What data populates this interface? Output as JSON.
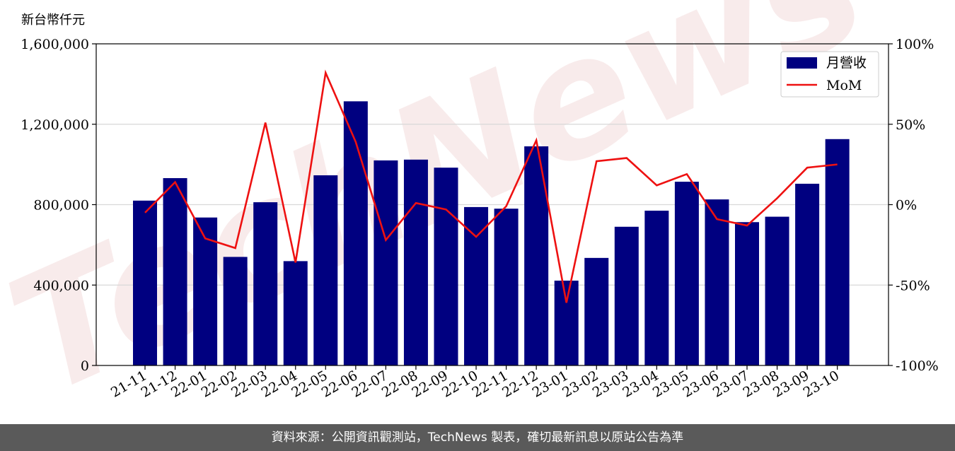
{
  "chart_data": {
    "type": "bar",
    "unit_label": "新台幣仟元",
    "categories": [
      "21-11",
      "21-12",
      "22-01",
      "22-02",
      "22-03",
      "22-04",
      "22-05",
      "22-06",
      "22-07",
      "22-08",
      "22-09",
      "22-10",
      "22-11",
      "22-12",
      "23-01",
      "23-02",
      "23-03",
      "23-04",
      "23-05",
      "23-06",
      "23-07",
      "23-08",
      "23-09",
      "23-10"
    ],
    "series": [
      {
        "name": "月營收",
        "kind": "bar",
        "axis": "left",
        "color": "#000080",
        "values": [
          820000,
          932000,
          736000,
          540000,
          812000,
          519000,
          946000,
          1314000,
          1020000,
          1024000,
          984000,
          788000,
          780000,
          1090000,
          422000,
          535000,
          690000,
          770000,
          914000,
          826000,
          713000,
          740000,
          904000,
          1126000
        ]
      },
      {
        "name": "MoM",
        "kind": "line",
        "axis": "right",
        "color": "#ee1111",
        "values": [
          -5,
          14,
          -21,
          -27,
          51,
          -36,
          82,
          39,
          -22,
          1,
          -3,
          -20,
          -1,
          40,
          -61,
          27,
          29,
          12,
          19,
          -9,
          -13,
          4,
          23,
          25
        ]
      }
    ],
    "left_axis": {
      "min": 0,
      "max": 1600000,
      "ticks": [
        0,
        400000,
        800000,
        1200000,
        1600000
      ],
      "tick_labels": [
        "0",
        "400,000",
        "800,000",
        "1,200,000",
        "1,600,000"
      ]
    },
    "right_axis": {
      "min": -100,
      "max": 100,
      "ticks": [
        -100,
        -50,
        0,
        50,
        100
      ],
      "tick_labels": [
        "-100%",
        "-50%",
        "0%",
        "50%",
        "100%"
      ]
    },
    "grid": true,
    "legend_position": "top-right"
  },
  "watermark": "TechNews",
  "footer_text": "資料來源：公開資訊觀測站，TechNews 製表，確切最新訊息以原站公告為準"
}
